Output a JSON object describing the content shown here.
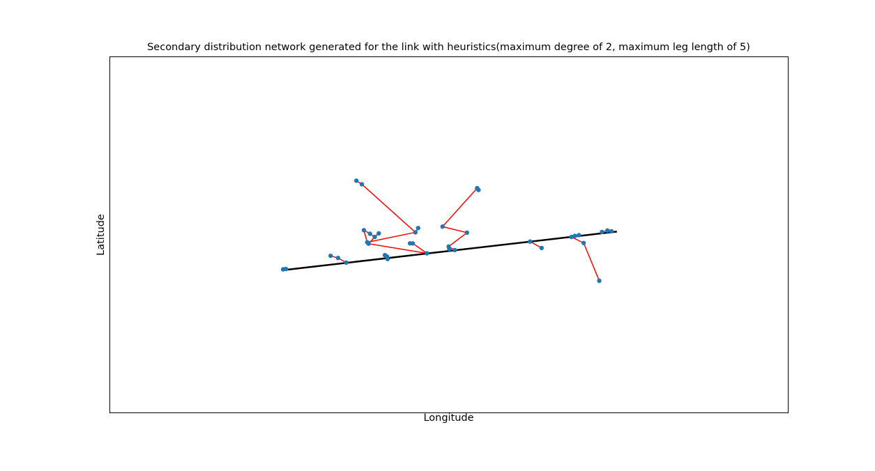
{
  "chart_data": {
    "type": "scatter",
    "title": "Secondary distribution network generated for the link with heuristics(maximum degree of 2, maximum leg length of 5)",
    "xlabel": "Longitude",
    "ylabel": "Latitude",
    "xlim": [
      0,
      1
    ],
    "ylim": [
      0,
      1
    ],
    "grid": false,
    "ticks_shown": false,
    "colors": {
      "link": "#000000",
      "edges": "#ff0000",
      "nodes": "#1f77b4"
    },
    "link": [
      [
        0.257,
        0.4
      ],
      [
        0.748,
        0.508
      ]
    ],
    "nodes": [
      [
        0.256,
        0.402
      ],
      [
        0.26,
        0.403
      ],
      [
        0.326,
        0.44
      ],
      [
        0.337,
        0.434
      ],
      [
        0.349,
        0.421
      ],
      [
        0.364,
        0.651
      ],
      [
        0.372,
        0.641
      ],
      [
        0.375,
        0.512
      ],
      [
        0.38,
        0.478
      ],
      [
        0.382,
        0.474
      ],
      [
        0.384,
        0.502
      ],
      [
        0.391,
        0.493
      ],
      [
        0.397,
        0.503
      ],
      [
        0.406,
        0.442
      ],
      [
        0.409,
        0.438
      ],
      [
        0.41,
        0.431
      ],
      [
        0.443,
        0.475
      ],
      [
        0.447,
        0.475
      ],
      [
        0.451,
        0.506
      ],
      [
        0.455,
        0.518
      ],
      [
        0.468,
        0.447
      ],
      [
        0.491,
        0.522
      ],
      [
        0.501,
        0.459
      ],
      [
        0.5,
        0.466
      ],
      [
        0.509,
        0.456
      ],
      [
        0.527,
        0.505
      ],
      [
        0.542,
        0.63
      ],
      [
        0.544,
        0.625
      ],
      [
        0.62,
        0.48
      ],
      [
        0.637,
        0.462
      ],
      [
        0.681,
        0.493
      ],
      [
        0.686,
        0.496
      ],
      [
        0.692,
        0.498
      ],
      [
        0.699,
        0.476
      ],
      [
        0.722,
        0.37
      ],
      [
        0.726,
        0.507
      ],
      [
        0.734,
        0.511
      ],
      [
        0.74,
        0.509
      ]
    ],
    "edges": [
      [
        0,
        1
      ],
      [
        2,
        3
      ],
      [
        3,
        4
      ],
      [
        5,
        6
      ],
      [
        6,
        18
      ],
      [
        7,
        8
      ],
      [
        7,
        10
      ],
      [
        8,
        9
      ],
      [
        9,
        11
      ],
      [
        10,
        11
      ],
      [
        12,
        11
      ],
      [
        13,
        14
      ],
      [
        14,
        15
      ],
      [
        9,
        20
      ],
      [
        16,
        17
      ],
      [
        17,
        20
      ],
      [
        21,
        25
      ],
      [
        21,
        26
      ],
      [
        26,
        27
      ],
      [
        25,
        23
      ],
      [
        22,
        23
      ],
      [
        23,
        24
      ],
      [
        28,
        29
      ],
      [
        30,
        31
      ],
      [
        31,
        32
      ],
      [
        30,
        33
      ],
      [
        33,
        34
      ],
      [
        35,
        36
      ],
      [
        36,
        37
      ],
      [
        18,
        19
      ],
      [
        18,
        8
      ]
    ]
  }
}
